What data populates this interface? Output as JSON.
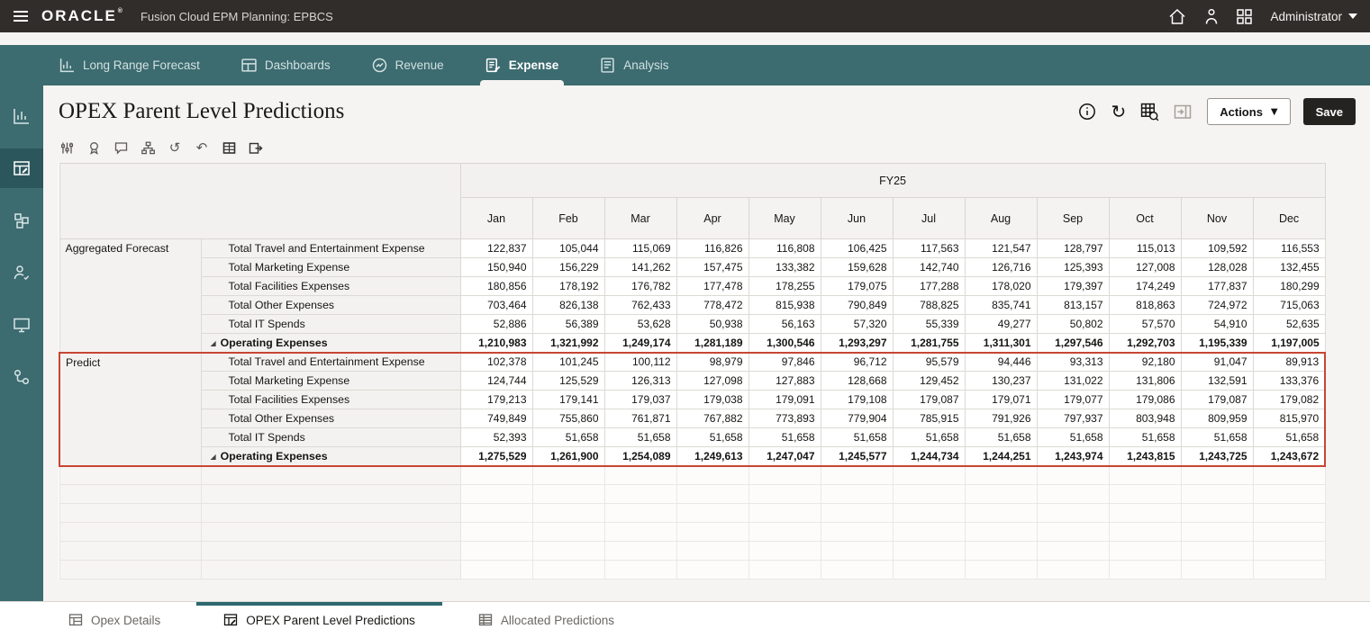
{
  "topbar": {
    "brand": "ORACLE",
    "app_title": "Fusion Cloud EPM Planning:  EPBCS",
    "user_menu": "Administrator",
    "icons": [
      "menu-icon",
      "home-icon",
      "user-assist-icon",
      "apps-grid-icon",
      "caret-down-icon"
    ]
  },
  "nav": {
    "tabs": [
      {
        "label": "Long Range Forecast",
        "active": false
      },
      {
        "label": "Dashboards",
        "active": false
      },
      {
        "label": "Revenue",
        "active": false
      },
      {
        "label": "Expense",
        "active": true
      },
      {
        "label": "Analysis",
        "active": false
      }
    ]
  },
  "rail": {
    "items": [
      "charts",
      "forms",
      "dimensions",
      "users",
      "console",
      "workflow"
    ],
    "active_index": 1
  },
  "page": {
    "title": "OPEX Parent Level Predictions",
    "header_icons": [
      "info-icon",
      "refresh-icon",
      "grid-search-icon",
      "panel-toggle-icon"
    ],
    "actions_label": "Actions",
    "save_label": "Save"
  },
  "toolbar": {
    "icons": [
      "adjust-icon",
      "seal-icon",
      "comment-icon",
      "hierarchy-icon",
      "history-icon",
      "undo-icon",
      "data-grid-icon",
      "detach-icon"
    ]
  },
  "grid": {
    "year_header": "FY25",
    "months": [
      "Jan",
      "Feb",
      "Mar",
      "Apr",
      "May",
      "Jun",
      "Jul",
      "Aug",
      "Sep",
      "Oct",
      "Nov",
      "Dec"
    ],
    "empty_rows": 6,
    "groups": [
      {
        "name": "Aggregated Forecast",
        "highlight": false,
        "rows": [
          {
            "label": "Total Travel and Entertainment Expense",
            "bold": false,
            "values": [
              "122,837",
              "105,044",
              "115,069",
              "116,826",
              "116,808",
              "106,425",
              "117,563",
              "121,547",
              "128,797",
              "115,013",
              "109,592",
              "116,553"
            ]
          },
          {
            "label": "Total Marketing Expense",
            "bold": false,
            "values": [
              "150,940",
              "156,229",
              "141,262",
              "157,475",
              "133,382",
              "159,628",
              "142,740",
              "126,716",
              "125,393",
              "127,008",
              "128,028",
              "132,455"
            ]
          },
          {
            "label": "Total Facilities Expenses",
            "bold": false,
            "values": [
              "180,856",
              "178,192",
              "176,782",
              "177,478",
              "178,255",
              "179,075",
              "177,288",
              "178,020",
              "179,397",
              "174,249",
              "177,837",
              "180,299"
            ]
          },
          {
            "label": "Total Other Expenses",
            "bold": false,
            "values": [
              "703,464",
              "826,138",
              "762,433",
              "778,472",
              "815,938",
              "790,849",
              "788,825",
              "835,741",
              "813,157",
              "818,863",
              "724,972",
              "715,063"
            ]
          },
          {
            "label": "Total IT Spends",
            "bold": false,
            "values": [
              "52,886",
              "56,389",
              "53,628",
              "50,938",
              "56,163",
              "57,320",
              "55,339",
              "49,277",
              "50,802",
              "57,570",
              "54,910",
              "52,635"
            ]
          },
          {
            "label": "Operating Expenses",
            "bold": true,
            "values": [
              "1,210,983",
              "1,321,992",
              "1,249,174",
              "1,281,189",
              "1,300,546",
              "1,293,297",
              "1,281,755",
              "1,311,301",
              "1,297,546",
              "1,292,703",
              "1,195,339",
              "1,197,005"
            ]
          }
        ]
      },
      {
        "name": "Predict",
        "highlight": true,
        "rows": [
          {
            "label": "Total Travel and Entertainment Expense",
            "bold": false,
            "values": [
              "102,378",
              "101,245",
              "100,112",
              "98,979",
              "97,846",
              "96,712",
              "95,579",
              "94,446",
              "93,313",
              "92,180",
              "91,047",
              "89,913"
            ]
          },
          {
            "label": "Total Marketing Expense",
            "bold": false,
            "values": [
              "124,744",
              "125,529",
              "126,313",
              "127,098",
              "127,883",
              "128,668",
              "129,452",
              "130,237",
              "131,022",
              "131,806",
              "132,591",
              "133,376"
            ]
          },
          {
            "label": "Total Facilities Expenses",
            "bold": false,
            "values": [
              "179,213",
              "179,141",
              "179,037",
              "179,038",
              "179,091",
              "179,108",
              "179,087",
              "179,071",
              "179,077",
              "179,086",
              "179,087",
              "179,082"
            ]
          },
          {
            "label": "Total Other Expenses",
            "bold": false,
            "values": [
              "749,849",
              "755,860",
              "761,871",
              "767,882",
              "773,893",
              "779,904",
              "785,915",
              "791,926",
              "797,937",
              "803,948",
              "809,959",
              "815,970"
            ]
          },
          {
            "label": "Total IT Spends",
            "bold": false,
            "values": [
              "52,393",
              "51,658",
              "51,658",
              "51,658",
              "51,658",
              "51,658",
              "51,658",
              "51,658",
              "51,658",
              "51,658",
              "51,658",
              "51,658"
            ]
          },
          {
            "label": "Operating Expenses",
            "bold": true,
            "values": [
              "1,275,529",
              "1,261,900",
              "1,254,089",
              "1,249,613",
              "1,247,047",
              "1,245,577",
              "1,244,734",
              "1,244,251",
              "1,243,974",
              "1,243,815",
              "1,243,725",
              "1,243,672"
            ]
          }
        ]
      }
    ]
  },
  "footer": {
    "tabs": [
      {
        "label": "Opex Details",
        "active": false
      },
      {
        "label": "OPEX Parent Level Predictions",
        "active": true
      },
      {
        "label": "Allocated Predictions",
        "active": false
      }
    ]
  },
  "colors": {
    "accent_teal": "#3C6B70",
    "highlight_red": "#C74634",
    "topbar": "#312D2A"
  }
}
